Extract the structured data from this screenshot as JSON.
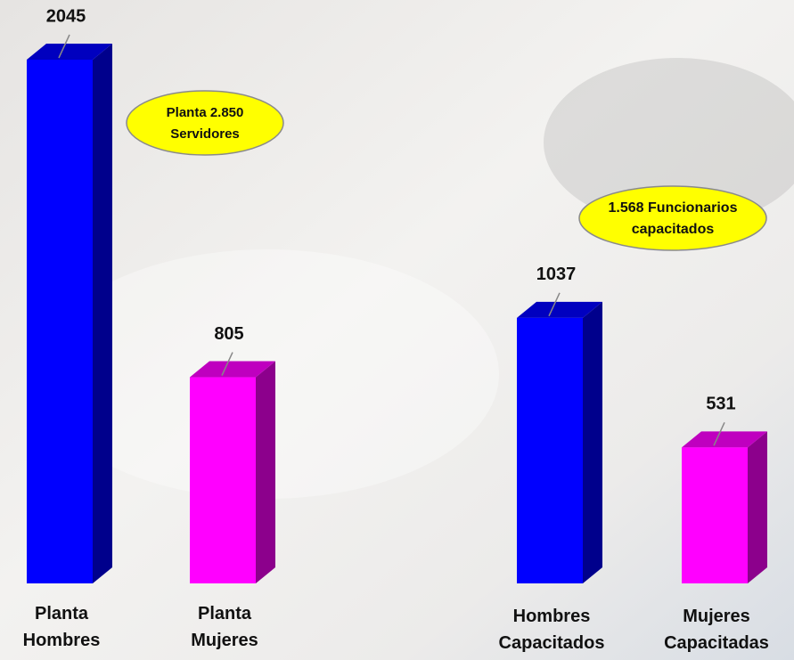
{
  "chart_data": {
    "type": "bar3d",
    "categories": [
      "Planta Hombres",
      "Planta Mujeres",
      "Hombres Capacitados",
      "Mujeres Capacitadas"
    ],
    "values": [
      2045,
      805,
      1037,
      531
    ],
    "colors": [
      "#0000ff",
      "#ff00ff",
      "#0000ff",
      "#ff00ff"
    ],
    "annotations": [
      [
        "Planta 2.850",
        "Servidores"
      ],
      [
        "1.568 Funcionarios",
        "capacitados"
      ]
    ]
  }
}
